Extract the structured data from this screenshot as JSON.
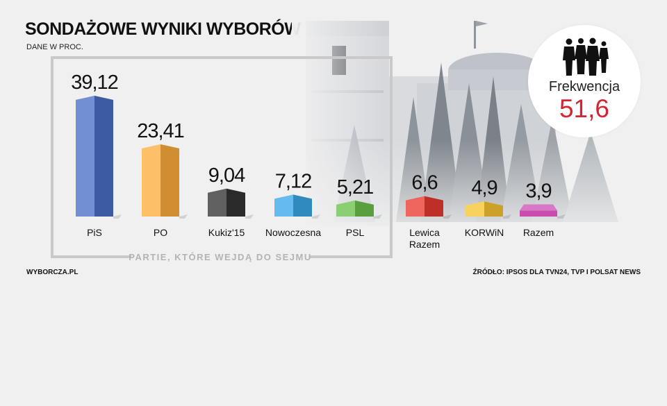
{
  "header": {
    "title": "SONDAŻOWE WYNIKI WYBORÓW",
    "subtitle": "DANE W PROC."
  },
  "turnout": {
    "label": "Frekwencja",
    "value": "51,6",
    "icon": "people-icon"
  },
  "footer": {
    "left": "WYBORCZA.PL",
    "right": "ŹRÓDŁO: IPSOS DLA TVN24, TVP I POLSAT NEWS"
  },
  "chart_data": {
    "type": "bar",
    "title": "SONDAŻOWE WYNIKI WYBORÓW",
    "subtitle": "DANE W PROC.",
    "categories": [
      "PiS",
      "PO",
      "Kukiz'15",
      "Nowoczesna",
      "PSL",
      "Lewica\nRazem",
      "KORWiN",
      "Razem"
    ],
    "values": [
      39.12,
      23.41,
      9.04,
      7.12,
      5.21,
      6.6,
      4.9,
      3.9
    ],
    "value_labels": [
      "39,12",
      "23,41",
      "9,04",
      "7,12",
      "5,21",
      "6,6",
      "4,9",
      "3,9"
    ],
    "colors": [
      "#4a6fc7",
      "#fdad3d",
      "#333333",
      "#3aa8e8",
      "#6cc24a",
      "#e8392f",
      "#f7c530",
      "#c94cb0"
    ],
    "group": {
      "label": "PARTIE, KTÓRE WEJDĄ DO SEJMU",
      "count": 5
    },
    "legend": "none",
    "grid": false
  }
}
